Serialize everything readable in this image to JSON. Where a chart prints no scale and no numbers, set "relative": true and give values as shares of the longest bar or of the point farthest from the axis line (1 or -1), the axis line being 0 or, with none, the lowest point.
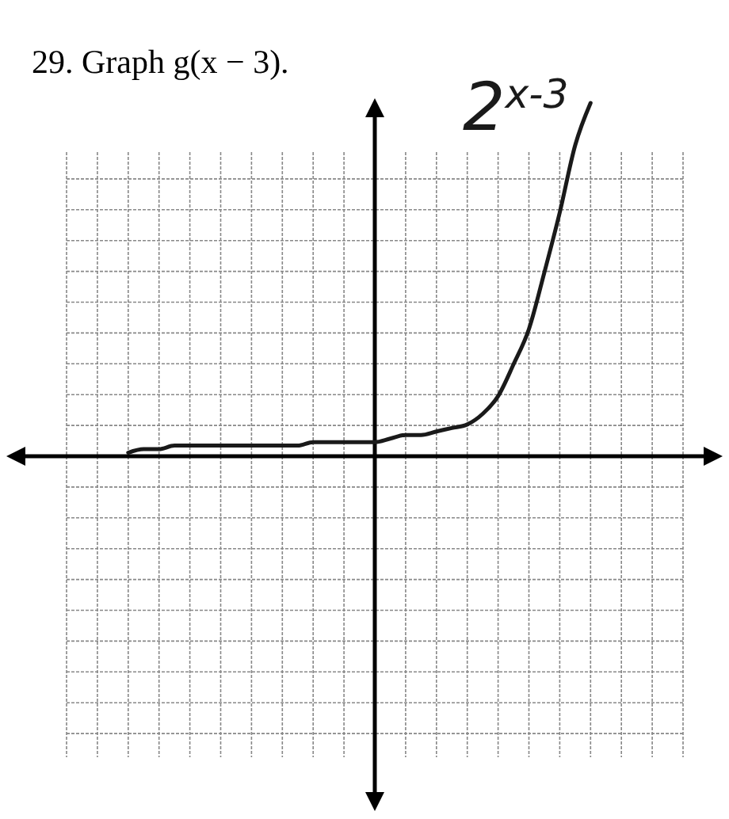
{
  "chart_data": {
    "type": "line",
    "title": "29. Graph g(x − 3).",
    "annotations": [
      "2$^{x-3}$"
    ],
    "relative": true,
    "grid": true,
    "categories": [
      null,
      null,
      null,
      null,
      null,
      null,
      null,
      null,
      null,
      null,
      null,
      null,
      null,
      null,
      null,
      null,
      null,
      null,
      null,
      null,
      null,
      null,
      null,
      null,
      null,
      null,
      null,
      null,
      null,
      null,
      null,
      null,
      null,
      null,
      null,
      null,
      null,
      null,
      null,
      null,
      null
    ],
    "series": [
      {
        "color": "#1a1a1a",
        "values": [
          null,
          null,
          null,
          null,
          0.01,
          0.02,
          0.02,
          0.03,
          0.03,
          0.03,
          0.03,
          0.03,
          0.03,
          0.03,
          0.03,
          0.03,
          0.04,
          0.04,
          0.04,
          0.04,
          0.04,
          0.05,
          0.06,
          0.06,
          0.07,
          0.08,
          0.09,
          0.12,
          0.17,
          0.26,
          0.36,
          0.52,
          0.69,
          0.88,
          1,
          null,
          null,
          null,
          null,
          null,
          null
        ]
      }
    ]
  }
}
